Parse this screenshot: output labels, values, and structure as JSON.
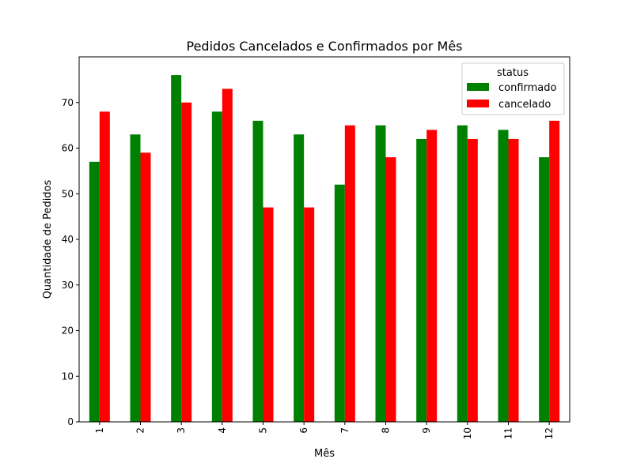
{
  "chart_data": {
    "type": "bar",
    "title": "Pedidos Cancelados e Confirmados por Mês",
    "xlabel": "Mês",
    "ylabel": "Quantidade de Pedidos",
    "categories": [
      "1",
      "2",
      "3",
      "4",
      "5",
      "6",
      "7",
      "8",
      "9",
      "10",
      "11",
      "12"
    ],
    "series": [
      {
        "name": "confirmado",
        "color": "#008000",
        "values": [
          57,
          63,
          76,
          68,
          66,
          63,
          52,
          65,
          62,
          65,
          64,
          58
        ]
      },
      {
        "name": "cancelado",
        "color": "#ff0000",
        "values": [
          68,
          59,
          70,
          73,
          47,
          47,
          65,
          58,
          64,
          62,
          62,
          66
        ]
      }
    ],
    "ylim": [
      0,
      80
    ],
    "yticks": [
      0,
      10,
      20,
      30,
      40,
      50,
      60,
      70
    ],
    "grid": false,
    "legend": {
      "title": "status",
      "placement": "top-right"
    }
  }
}
